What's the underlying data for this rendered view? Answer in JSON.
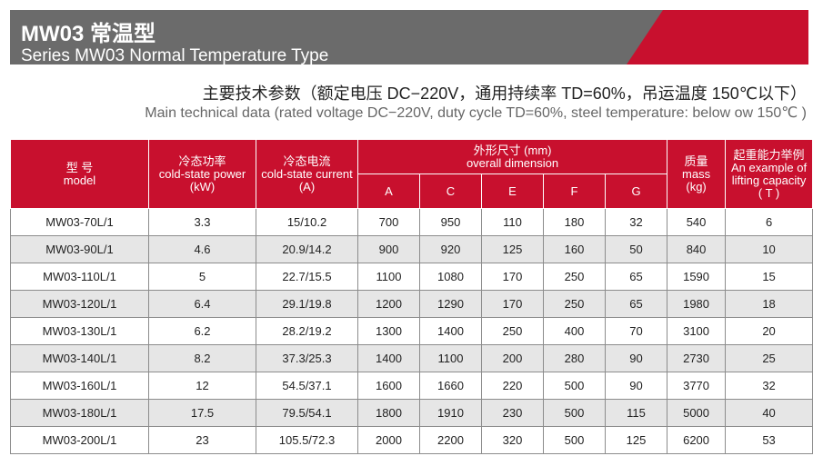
{
  "header": {
    "title_cn": "MW03 常温型",
    "title_en": "Series MW03 Normal Temperature Type"
  },
  "subtitle": {
    "cn": "主要技术参数（额定电压 DC−220V，通用持续率 TD=60%，吊运温度 150℃以下）",
    "en": "Main technical data (rated voltage DC−220V, duty cycle TD=60%, steel temperature: below ow 150℃ )"
  },
  "table": {
    "headers": {
      "model_cn": "型 号",
      "model_en": "model",
      "power_cn": "冷态功率",
      "power_en": "cold-state power",
      "power_unit": "(kW)",
      "current_cn": "冷态电流",
      "current_en": "cold-state current",
      "current_unit": "(A)",
      "dim_cn": "外形尺寸 (mm)",
      "dim_en": "overall dimension",
      "dims": [
        "A",
        "C",
        "E",
        "F",
        "G"
      ],
      "mass_cn": "质量",
      "mass_en": "mass",
      "mass_unit": "(kg)",
      "lift_cn": "起重能力举例",
      "lift_en": "An example of lifting capacity",
      "lift_unit": "( T )"
    },
    "rows": [
      [
        "MW03-70L/1",
        "3.3",
        "15/10.2",
        "700",
        "950",
        "110",
        "180",
        "32",
        "540",
        "6"
      ],
      [
        "MW03-90L/1",
        "4.6",
        "20.9/14.2",
        "900",
        "920",
        "125",
        "160",
        "50",
        "840",
        "10"
      ],
      [
        "MW03-110L/1",
        "5",
        "22.7/15.5",
        "1100",
        "1080",
        "170",
        "250",
        "65",
        "1590",
        "15"
      ],
      [
        "MW03-120L/1",
        "6.4",
        "29.1/19.8",
        "1200",
        "1290",
        "170",
        "250",
        "65",
        "1980",
        "18"
      ],
      [
        "MW03-130L/1",
        "6.2",
        "28.2/19.2",
        "1300",
        "1400",
        "250",
        "400",
        "70",
        "3100",
        "20"
      ],
      [
        "MW03-140L/1",
        "8.2",
        "37.3/25.3",
        "1400",
        "1100",
        "200",
        "280",
        "90",
        "2730",
        "25"
      ],
      [
        "MW03-160L/1",
        "12",
        "54.5/37.1",
        "1600",
        "1660",
        "220",
        "500",
        "90",
        "3770",
        "32"
      ],
      [
        "MW03-180L/1",
        "17.5",
        "79.5/54.1",
        "1800",
        "1910",
        "230",
        "500",
        "115",
        "5000",
        "40"
      ],
      [
        "MW03-200L/1",
        "23",
        "105.5/72.3",
        "2000",
        "2200",
        "320",
        "500",
        "125",
        "6200",
        "53"
      ]
    ]
  },
  "colors": {
    "accent": "#c8102e",
    "banner": "#6b6b6b",
    "row_alt": "#e6e6e6"
  }
}
